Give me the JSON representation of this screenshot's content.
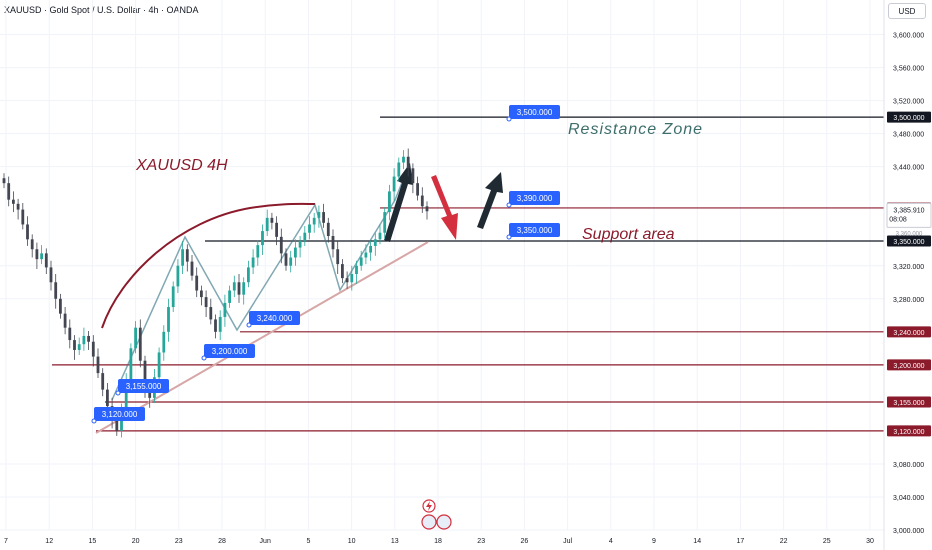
{
  "header": {
    "symbol_title": "XAUUSD · Gold Spot / U.S. Dollar · 4h · OANDA",
    "currency_button": "USD"
  },
  "annotations": {
    "chart_label": "XAUUSD 4H",
    "resistance_label": "Resistance Zone",
    "support_label": "Support area"
  },
  "colors": {
    "grid": "#f0f3fa",
    "candle_up": "#26a69a",
    "candle_down": "#434651",
    "dark_red": "#8b1a2b",
    "red_arrow": "#d32f3f",
    "arrow_dark": "#1f2a33",
    "label_blue": "#2962ff",
    "resistance_text": "#3d6e6b",
    "trendline": "#d7a6a6",
    "current_price_bg": "#ffffff"
  },
  "chart_data": {
    "type": "candlestick",
    "title": "XAUUSD 4H",
    "ylim": [
      3000,
      3640
    ],
    "y_ticks": [
      "3,600.000",
      "3,560.000",
      "3,520.000",
      "3,480.000",
      "3,440.000",
      "3,320.000",
      "3,280.000",
      "3,080.000",
      "3,040.000",
      "3,000.000"
    ],
    "x_ticks": [
      "7",
      "12",
      "15",
      "20",
      "23",
      "28",
      "Jun",
      "5",
      "10",
      "13",
      "18",
      "23",
      "26",
      "Jul",
      "4",
      "9",
      "14",
      "17",
      "22",
      "25",
      "30"
    ],
    "levels": [
      {
        "price": 3500,
        "label": "3,500.000",
        "style": "dark"
      },
      {
        "price": 3390,
        "label": "3,390.000",
        "style": "red"
      },
      {
        "price": 3350,
        "label": "3,350.000",
        "style": "dark"
      },
      {
        "price": 3240,
        "label": "3,240.000",
        "style": "red"
      },
      {
        "price": 3200,
        "label": "3,200.000",
        "style": "red"
      },
      {
        "price": 3155,
        "label": "3,155.000",
        "style": "red"
      },
      {
        "price": 3120,
        "label": "3,120.000",
        "style": "red"
      }
    ],
    "price_callouts": [
      "3,500.000",
      "3,390.000",
      "3,350.000",
      "3,240.000",
      "3,200.000",
      "3,155.000",
      "3,120.000"
    ],
    "current_price": {
      "value": "3,385.910",
      "countdown": "08:08",
      "partial_label": "3,360.000"
    },
    "closes": [
      3420,
      3400,
      3395,
      3388,
      3370,
      3352,
      3340,
      3328,
      3335,
      3318,
      3300,
      3280,
      3262,
      3245,
      3230,
      3218,
      3225,
      3235,
      3228,
      3210,
      3190,
      3170,
      3150,
      3135,
      3120,
      3145,
      3180,
      3220,
      3245,
      3205,
      3170,
      3160,
      3185,
      3215,
      3240,
      3270,
      3295,
      3320,
      3340,
      3325,
      3308,
      3290,
      3282,
      3270,
      3255,
      3240,
      3258,
      3275,
      3290,
      3300,
      3285,
      3300,
      3318,
      3330,
      3345,
      3362,
      3378,
      3372,
      3355,
      3335,
      3320,
      3330,
      3342,
      3350,
      3360,
      3370,
      3378,
      3385,
      3372,
      3356,
      3340,
      3322,
      3305,
      3300,
      3310,
      3320,
      3330,
      3336,
      3344,
      3352,
      3360,
      3385,
      3410,
      3428,
      3445,
      3452,
      3438,
      3420,
      3405,
      3392,
      3386
    ]
  }
}
